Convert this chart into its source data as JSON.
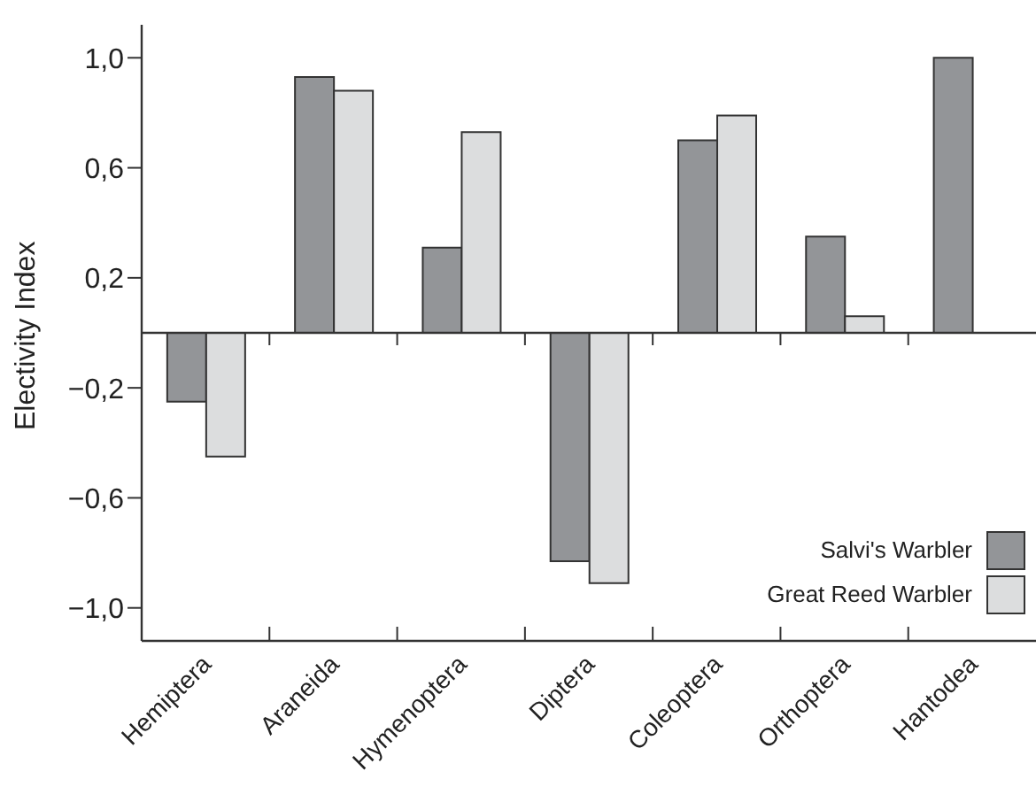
{
  "chart_data": {
    "type": "bar",
    "ylabel": "Electivity Index",
    "categories": [
      "Hemiptera",
      "Araneida",
      "Hymenoptera",
      "Diptera",
      "Coleoptera",
      "Orthoptera",
      "Hantodea"
    ],
    "series": [
      {
        "name": "Salvi's Warbler",
        "color": "#939598",
        "values": [
          -0.25,
          0.93,
          0.31,
          -0.83,
          0.7,
          0.35,
          1.0
        ]
      },
      {
        "name": "Great Reed Warbler",
        "color": "#dcddde",
        "values": [
          -0.45,
          0.88,
          0.73,
          -0.91,
          0.79,
          0.06,
          null
        ]
      }
    ],
    "ylim": [
      -1.12,
      1.12
    ],
    "yticks": [
      {
        "value": 1.0,
        "label": "1,0"
      },
      {
        "value": 0.6,
        "label": "0,6"
      },
      {
        "value": 0.2,
        "label": "0,2"
      },
      {
        "value": -0.2,
        "label": "−0,2"
      },
      {
        "value": -0.6,
        "label": "−0,6"
      },
      {
        "value": -1.0,
        "label": "−1,0"
      }
    ],
    "grid": false,
    "legend": "bottom right"
  }
}
